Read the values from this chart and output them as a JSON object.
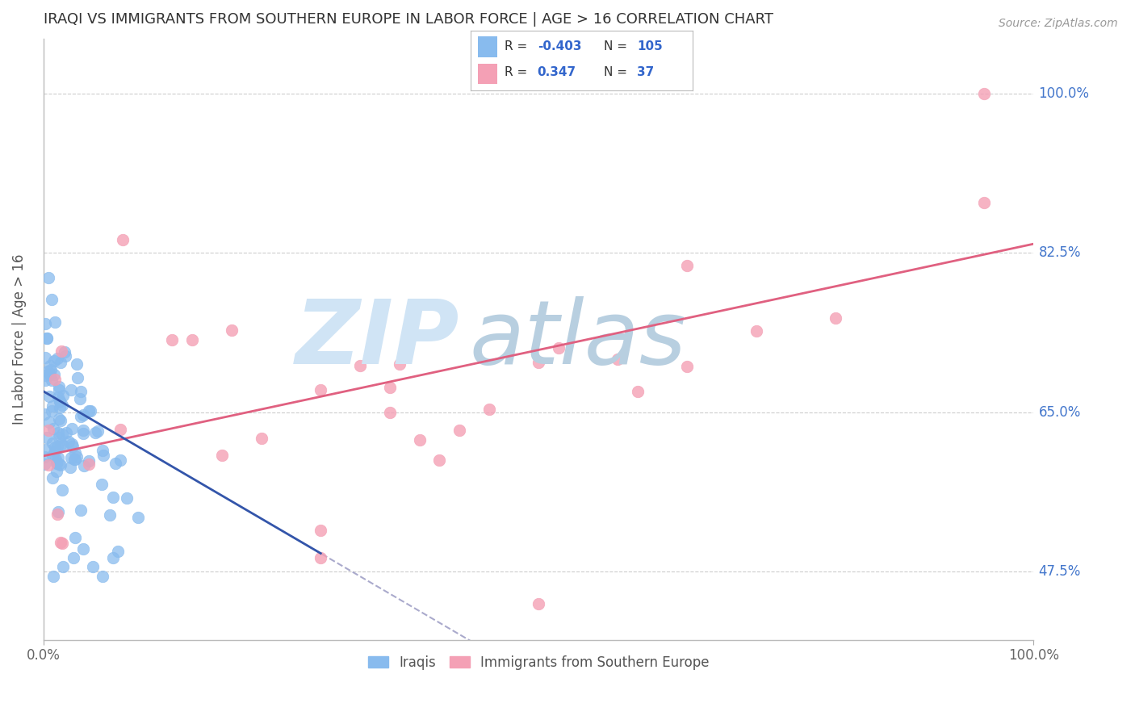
{
  "title": "IRAQI VS IMMIGRANTS FROM SOUTHERN EUROPE IN LABOR FORCE | AGE > 16 CORRELATION CHART",
  "source": "Source: ZipAtlas.com",
  "ylabel": "In Labor Force | Age > 16",
  "xlim": [
    0.0,
    1.0
  ],
  "ylim": [
    0.4,
    1.06
  ],
  "yticks": [
    0.475,
    0.65,
    0.825,
    1.0
  ],
  "ytick_labels": [
    "47.5%",
    "65.0%",
    "82.5%",
    "100.0%"
  ],
  "iraqis_color": "#88bbee",
  "immigrants_color": "#f4a0b5",
  "iraqis_R": -0.403,
  "iraqis_N": 105,
  "immigrants_R": 0.347,
  "immigrants_N": 37,
  "legend_label_1": "Iraqis",
  "legend_label_2": "Immigrants from Southern Europe",
  "blue_line_color": "#3355aa",
  "pink_line_color": "#e06080",
  "dashed_line_color": "#aaaacc",
  "background_color": "#ffffff",
  "grid_color": "#cccccc",
  "title_color": "#333333",
  "watermark_zip_color": "#d0e4f5",
  "watermark_atlas_color": "#b8cfe0"
}
